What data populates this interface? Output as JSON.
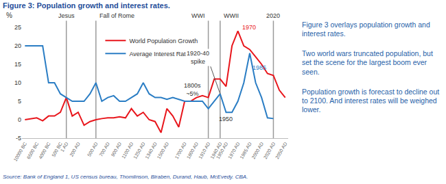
{
  "chart_data": {
    "type": "line",
    "title": "Figure 3: Population growth and interest rates.",
    "ylabel": "%",
    "categories": [
      "10000 BC",
      null,
      "6500 BC",
      null,
      "4000 BC",
      null,
      "500 BC",
      "1 AD",
      null,
      "200 AD",
      null,
      null,
      "500 AD",
      null,
      "700 AD",
      null,
      "900 AD",
      null,
      "1100 AD",
      null,
      "1250 AD",
      null,
      "1340 AD",
      null,
      "1500 AD",
      null,
      null,
      "1700 AD",
      null,
      "1800 AD",
      null,
      "1910 AD",
      null,
      "1940 AD",
      "1950 AD",
      null,
      "1970 AD",
      null,
      "1985 AD",
      null,
      "2000 AD",
      null,
      "2020 AD",
      null,
      "2050 AD"
    ],
    "series": [
      {
        "name": "World Population Growth",
        "color": "#e8151b",
        "values": [
          0,
          0.3,
          0.5,
          -0.3,
          1,
          1,
          2,
          6,
          1,
          2,
          -1.5,
          -0.5,
          0,
          0.3,
          0.5,
          0.5,
          0.8,
          0.5,
          3,
          1,
          2,
          0,
          -0.5,
          -3.5,
          3,
          1,
          -2,
          5,
          5,
          6,
          6.5,
          6,
          11,
          11,
          9,
          20,
          24,
          20,
          19,
          17,
          15,
          12.5,
          12,
          8,
          6
        ]
      },
      {
        "name": "Average Interest Rate",
        "color": "#2a7dc4",
        "values": [
          20,
          20,
          20,
          20,
          10,
          10,
          7,
          6,
          5,
          5,
          5,
          7,
          10,
          5,
          6,
          6.5,
          5,
          5,
          6,
          7,
          10,
          7,
          6,
          6,
          5.5,
          6,
          5.5,
          5,
          5,
          5,
          5,
          3,
          5,
          7,
          2,
          2,
          5,
          10,
          18,
          10,
          6,
          0.5,
          0.3,
          null,
          null
        ]
      }
    ],
    "ylim": [
      -5,
      25
    ],
    "yticks": [
      -5,
      0,
      5,
      10,
      15,
      20,
      25
    ],
    "grid": false,
    "legend": "top",
    "vertical_lines": [
      {
        "x": "1 AD",
        "label": "Jesus"
      },
      {
        "x": "500 AD",
        "label": "Fall of Rome"
      },
      {
        "x": "1910 AD",
        "label": "WWI"
      },
      {
        "x": "1940 AD",
        "label": "WWII"
      },
      {
        "x": "2020 AD",
        "label": "2020"
      }
    ],
    "annotations": [
      {
        "text": "1970",
        "x": "1970 AD",
        "y": 24,
        "color": "#e8151b"
      },
      {
        "text": "1985",
        "x": "1985 AD",
        "y": 18,
        "color": "#2a7dc4"
      },
      {
        "text": "1950",
        "x": "1950 AD",
        "y": 2,
        "color": "#333333"
      },
      {
        "text": "1800s\n~5%",
        "x": "1800 AD",
        "y": 5,
        "color": "#333333"
      },
      {
        "text": "1920-40\nspike",
        "x": "1940 AD",
        "y": 7,
        "color": "#333333"
      }
    ],
    "side_notes": [
      "Figure 3 overlays population growth and interest rates.",
      "Two world wars truncated population, but set the scene for the largest boom ever seen.",
      "Population growth is forecast to decline out to 2100.  And interest rates will be weighed lower."
    ],
    "source": "Source: Bank of England 1, US census bureau, Thomlinson, Biraben, Durand, Haub, McEvedy. CBA."
  }
}
